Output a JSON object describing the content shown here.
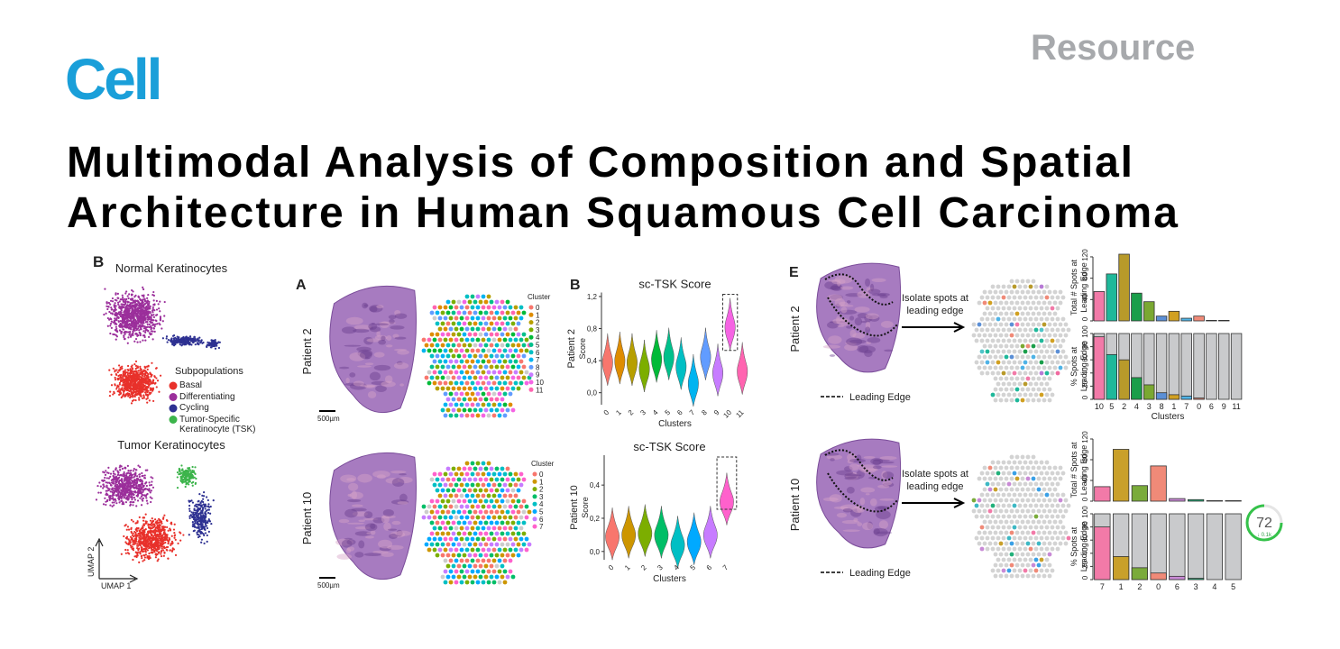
{
  "header": {
    "journal": "Cell",
    "article_type": "Resource",
    "title": [
      "Multimodal Analysis of Composition and Spatial",
      "Architecture in Human Squamous Cell Carcinoma"
    ]
  },
  "umap_panel": {
    "letter": "B",
    "normal_title": "Normal Keratinocytes",
    "tumor_title": "Tumor Keratinocytes",
    "legend_title": "Subpopulations",
    "legend": [
      {
        "name": "Basal",
        "color": "#e8312b"
      },
      {
        "name": "Differentiating",
        "color": "#9b2f9b"
      },
      {
        "name": "Cycling",
        "color": "#2e3192"
      },
      {
        "name": "Tumor-Specific Keratinocyte (TSK)",
        "color": "#3cb44b"
      }
    ],
    "x_axis": "UMAP 1",
    "y_axis": "UMAP 2"
  },
  "spatial_panel": {
    "letter": "A",
    "patients": [
      "Patient 2",
      "Patient 10"
    ],
    "scale_bar": "500µm",
    "legend_title": "Cluster",
    "clusters": [
      [
        "0",
        "1",
        "2",
        "3",
        "4",
        "5",
        "6",
        "7",
        "8",
        "9",
        "10",
        "11"
      ],
      [
        "0",
        "1",
        "2",
        "3",
        "4",
        "5",
        "6",
        "7"
      ]
    ]
  },
  "score_panel": {
    "letter": "B"
  },
  "edge_panel": {
    "letter": "E",
    "patients": [
      "Patient 2",
      "Patient 10"
    ],
    "step": [
      "Isolate spots at",
      "leading edge"
    ],
    "legend": "Leading Edge"
  },
  "overlay": {
    "value": "72",
    "delta": "↓ 0.1k"
  },
  "chart_data": [
    {
      "type": "violin",
      "title": "sc-TSK Score",
      "group": "Patient 2",
      "ylabel": "Score",
      "xlabel": "Clusters",
      "categories": [
        "0",
        "1",
        "2",
        "3",
        "4",
        "5",
        "6",
        "7",
        "8",
        "9",
        "10",
        "11"
      ],
      "values": [
        0.38,
        0.4,
        0.38,
        0.3,
        0.42,
        0.45,
        0.33,
        0.12,
        0.45,
        0.25,
        0.82,
        0.27
      ],
      "colors": [
        "#f8766d",
        "#de8c00",
        "#b79f00",
        "#7cae00",
        "#00ba38",
        "#00c08b",
        "#00bfc4",
        "#00b4f0",
        "#619cff",
        "#c77cff",
        "#f564e3",
        "#ff64b0"
      ],
      "ylim": [
        -0.15,
        1.25
      ],
      "yticks": [
        {
          "value": 0,
          "label": "0,0"
        },
        {
          "value": 0.4,
          "label": "0,4"
        },
        {
          "value": 0.8,
          "label": "0,8"
        },
        {
          "value": 1.2,
          "label": "1,2"
        }
      ],
      "highlight": 10
    },
    {
      "type": "violin",
      "title": "sc-TSK Score",
      "group": "Patient 10",
      "ylabel": "Score",
      "xlabel": "Clusters",
      "categories": [
        "0",
        "1",
        "2",
        "3",
        "4",
        "5",
        "6",
        "7"
      ],
      "values": [
        0.09,
        0.1,
        0.11,
        0.1,
        0.04,
        0.06,
        0.1,
        0.3
      ],
      "colors": [
        "#f8766d",
        "#cd9600",
        "#7cae00",
        "#00be67",
        "#00bfc4",
        "#00a9ff",
        "#c77cff",
        "#ff61cc"
      ],
      "ylim": [
        -0.05,
        0.58
      ],
      "yticks": [
        {
          "value": 0,
          "label": "0,0"
        },
        {
          "value": 0.2,
          "label": "0,2"
        },
        {
          "value": 0.4,
          "label": "0,4"
        }
      ],
      "highlight": 7
    },
    {
      "type": "bar",
      "ylabel": [
        "Total # Spots at",
        "Leading Edge"
      ],
      "values": [
        55,
        88,
        125,
        52,
        36,
        9,
        18,
        5,
        9,
        1,
        1,
        0
      ],
      "colors": [
        "#f27aa8",
        "#1fb89a",
        "#b89a2a",
        "#1a9e4a",
        "#7aa832",
        "#5b8fd6",
        "#d1a021",
        "#4fb3e6",
        "#f08a78",
        "#4fc4c8",
        "#b77ad6",
        "#f06aa0"
      ],
      "ylim": [
        0,
        125
      ],
      "yticks": [
        0,
        40,
        80,
        120
      ]
    },
    {
      "type": "bar",
      "style": "percent",
      "ylabel": [
        "% Spots at",
        "Leading Edge"
      ],
      "xlabel": "Clusters",
      "categories": [
        "10",
        "5",
        "2",
        "4",
        "3",
        "8",
        "1",
        "7",
        "0",
        "6",
        "9",
        "11"
      ],
      "values": [
        95,
        68,
        60,
        33,
        22,
        10,
        7,
        5,
        2,
        0,
        0,
        0
      ],
      "colors": [
        "#f27aa8",
        "#1fb89a",
        "#b89a2a",
        "#1a9e4a",
        "#7aa832",
        "#5b8fd6",
        "#d1a021",
        "#4fb3e6",
        "#f08a78",
        "#4fc4c8",
        "#b77ad6",
        "#f06aa0"
      ],
      "ylim": [
        0,
        100
      ],
      "yticks": [
        0,
        20,
        40,
        60,
        80,
        100
      ]
    },
    {
      "type": "bar",
      "ylabel": [
        "Total # Spots at",
        "Leading Edge"
      ],
      "values": [
        28,
        100,
        30,
        68,
        5,
        3,
        1,
        1
      ],
      "colors": [
        "#f27aa8",
        "#c9a02a",
        "#7aab3a",
        "#f08a78",
        "#c98ad6",
        "#22b07a",
        "#3db8c4",
        "#3aa0e6"
      ],
      "ylim": [
        0,
        120
      ],
      "yticks": [
        0,
        40,
        80,
        120
      ]
    },
    {
      "type": "bar",
      "style": "percent",
      "ylabel": [
        "% Spots at",
        "Leading Edge"
      ],
      "categories": [
        "7",
        "1",
        "2",
        "0",
        "6",
        "3",
        "4",
        "5"
      ],
      "values": [
        80,
        35,
        18,
        10,
        5,
        2,
        0,
        0
      ],
      "colors": [
        "#f27aa8",
        "#c9a02a",
        "#7aab3a",
        "#f08a78",
        "#c98ad6",
        "#22b07a",
        "#3db8c4",
        "#3aa0e6"
      ],
      "ylim": [
        0,
        100
      ],
      "yticks": [
        0,
        20,
        40,
        60,
        80,
        100
      ]
    }
  ]
}
